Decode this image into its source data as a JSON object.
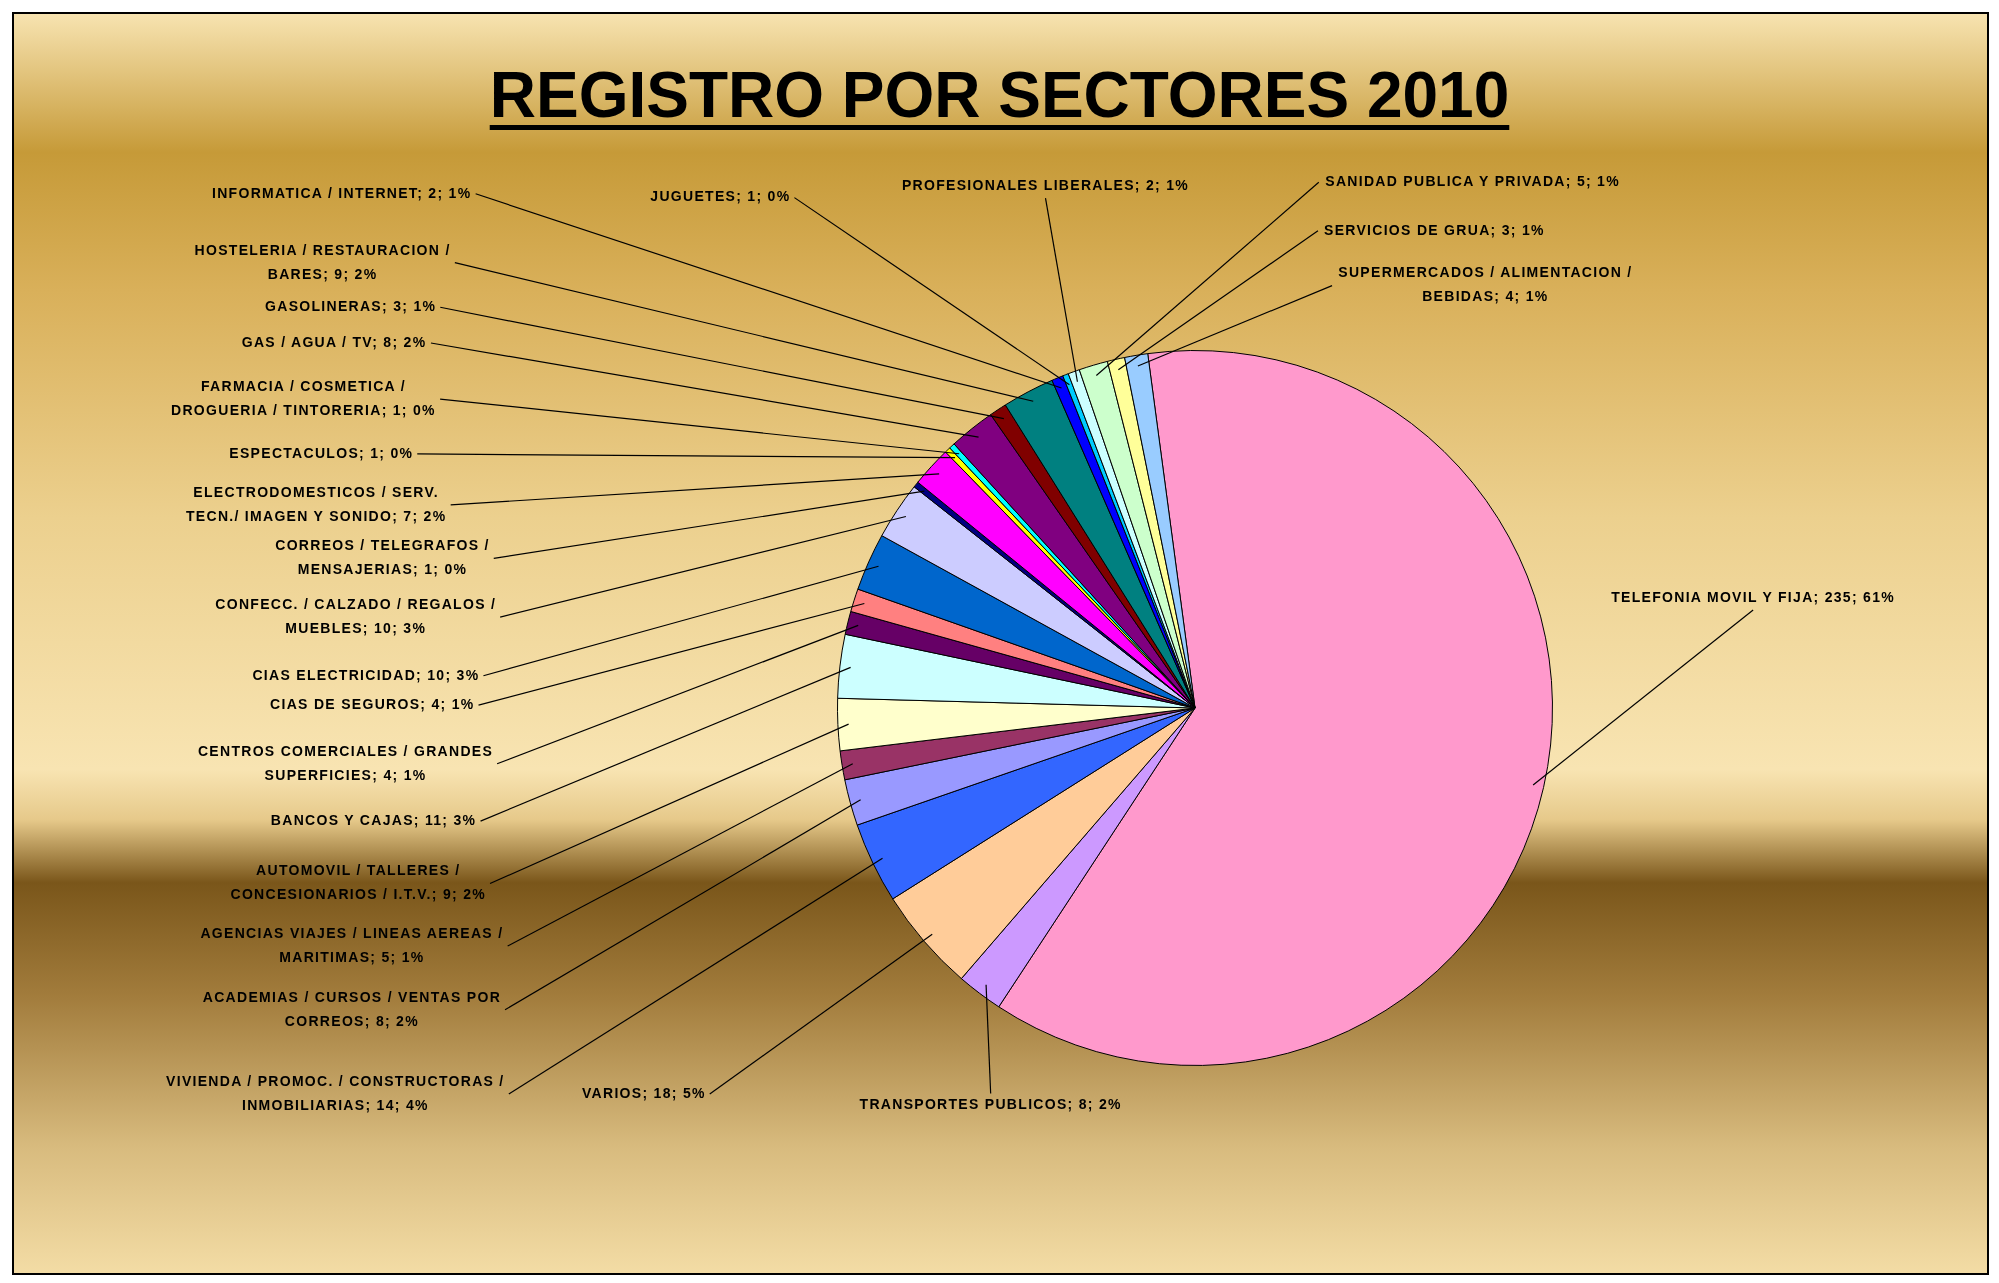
{
  "chart_data": {
    "type": "pie",
    "title": "REGISTRO POR SECTORES 2010",
    "legend": false,
    "categories": [
      "TELEFONIA MOVIL Y FIJA",
      "TRANSPORTES PUBLICOS",
      "VARIOS",
      "VIVIENDA / PROMOC. / CONSTRUCTORAS / INMOBILIARIAS",
      "ACADEMIAS / CURSOS / VENTAS POR CORREOS",
      "AGENCIAS VIAJES / LINEAS AEREAS / MARITIMAS",
      "AUTOMOVIL / TALLERES / CONCESIONARIOS / I.T.V.",
      "BANCOS Y CAJAS",
      "CENTROS COMERCIALES / GRANDES SUPERFICIES",
      "CIAS DE SEGUROS",
      "CIAS ELECTRICIDAD",
      "CONFECC. / CALZADO / REGALOS / MUEBLES",
      "CORREOS / TELEGRAFOS / MENSAJERIAS",
      "ELECTRODOMESTICOS / SERV. TECN./ IMAGEN Y SONIDO",
      "ESPECTACULOS",
      "FARMACIA / COSMETICA / DROGUERIA / TINTORERIA",
      "GAS / AGUA / TV",
      "GASOLINERAS",
      "HOSTELERIA / RESTAURACION / BARES",
      "INFORMATICA / INTERNET",
      "JUGUETES",
      "PROFESIONALES LIBERALES",
      "SANIDAD PUBLICA Y PRIVADA",
      "SERVICIOS DE GRUA",
      "SUPERMERCADOS / ALIMENTACION / BEBIDAS"
    ],
    "values": [
      235,
      8,
      18,
      14,
      8,
      5,
      9,
      11,
      4,
      4,
      10,
      10,
      1,
      7,
      1,
      1,
      8,
      3,
      9,
      2,
      1,
      2,
      5,
      3,
      4
    ],
    "value_labels": [
      "235; 61%",
      "8; 2%",
      "18; 5%",
      "14; 4%",
      "8; 2%",
      "5; 1%",
      "9; 2%",
      "11; 3%",
      "4; 1%",
      "4; 1%",
      "10; 3%",
      "10; 3%",
      "1; 0%",
      "7; 2%",
      "1; 0%",
      "1; 0%",
      "8; 2%",
      "3; 1%",
      "9; 2%",
      "2; 1%",
      "1; 0%",
      "2; 1%",
      "5; 1%",
      "3; 1%",
      "4; 1%"
    ],
    "colors": [
      "#ff99cc",
      "#cc99ff",
      "#ffcc99",
      "#3366ff",
      "#9999ff",
      "#993366",
      "#ffffcc",
      "#ccffff",
      "#660066",
      "#ff8080",
      "#0066cc",
      "#ccccff",
      "#000080",
      "#ff00ff",
      "#ffff00",
      "#00ffff",
      "#800080",
      "#800000",
      "#008080",
      "#0000ff",
      "#00ccff",
      "#ccffff",
      "#ccffcc",
      "#ffff99",
      "#99ccff"
    ]
  }
}
